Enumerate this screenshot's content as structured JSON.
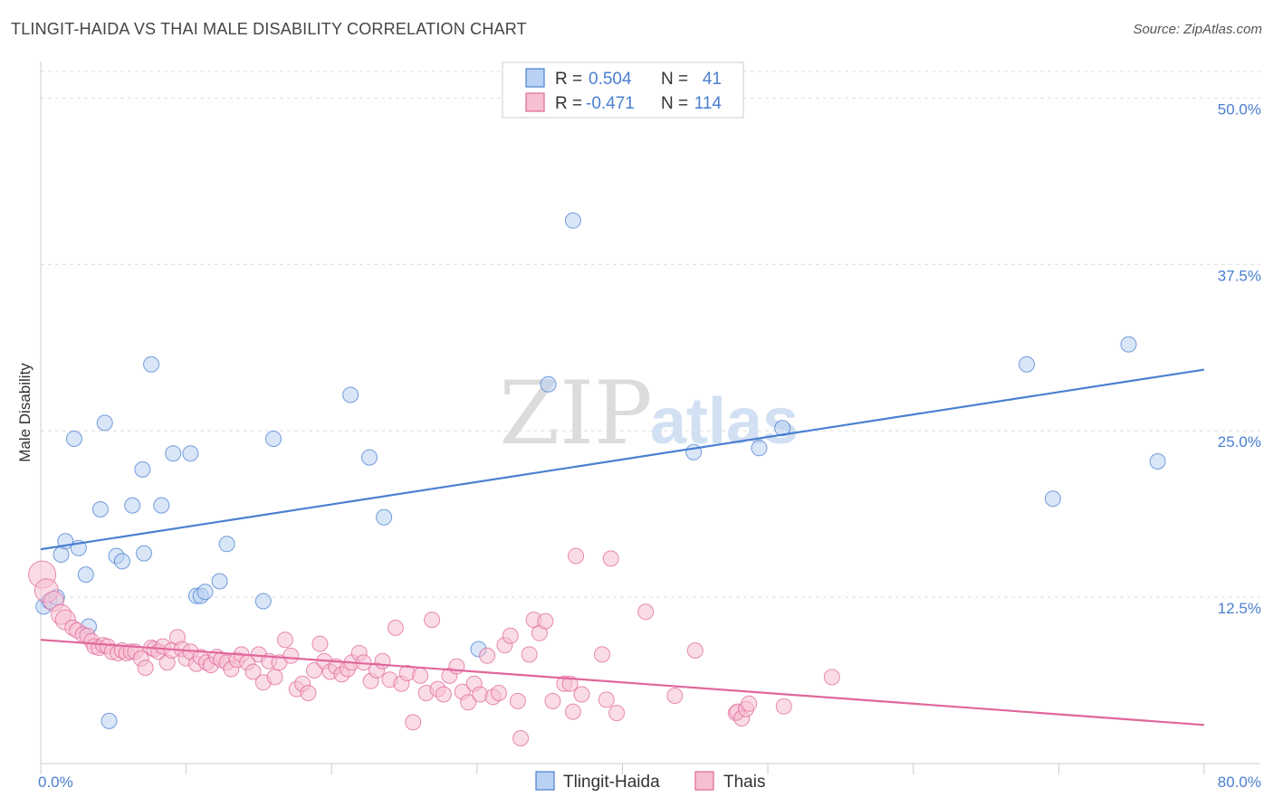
{
  "header": {
    "title": "TLINGIT-HAIDA VS THAI MALE DISABILITY CORRELATION CHART",
    "source": "Source: ZipAtlas.com"
  },
  "colors": {
    "blue": "#4a7fd0",
    "blue_fill": "#b9d1f2",
    "pink": "#e0679a",
    "pink_fill": "#f6bfd2",
    "grid": "#dddddd"
  },
  "chart_data": {
    "type": "scatter",
    "ylabel": "Male Disability",
    "xlim": [
      0,
      80
    ],
    "ylim": [
      0,
      52
    ],
    "x_ticks": [
      {
        "value": 0,
        "label": "0.0%"
      },
      {
        "value": 80,
        "label": "80.0%"
      }
    ],
    "y_ticks": [
      {
        "value": 12.5,
        "label": "12.5%"
      },
      {
        "value": 25,
        "label": "25.0%"
      },
      {
        "value": 37.5,
        "label": "37.5%"
      },
      {
        "value": 50,
        "label": "50.0%"
      }
    ],
    "grid": true,
    "legend": {
      "placement": "top-center",
      "entries": [
        {
          "r_label": "R =",
          "r": "0.504",
          "n_label": "N =",
          "n": "41"
        },
        {
          "r_label": "R =",
          "r": "-0.471",
          "n_label": "N =",
          "n": "114"
        }
      ]
    },
    "watermark": {
      "zip": "ZIP",
      "atlas": "atlas"
    },
    "series": [
      {
        "name": "Tlingit-Haida",
        "color": "blue",
        "trend": [
          [
            0,
            16.1
          ],
          [
            80,
            29.6
          ]
        ],
        "points": [
          [
            0.2,
            11.8
          ],
          [
            0.6,
            12.2
          ],
          [
            1.1,
            12.5
          ],
          [
            1.4,
            15.7
          ],
          [
            1.7,
            16.7
          ],
          [
            2.3,
            24.4
          ],
          [
            2.6,
            16.2
          ],
          [
            3.1,
            14.2
          ],
          [
            3.3,
            10.3
          ],
          [
            4.1,
            19.1
          ],
          [
            4.4,
            25.6
          ],
          [
            4.7,
            3.2
          ],
          [
            5.2,
            15.6
          ],
          [
            5.6,
            15.2
          ],
          [
            6.3,
            19.4
          ],
          [
            7.0,
            22.1
          ],
          [
            7.1,
            15.8
          ],
          [
            7.6,
            30.0
          ],
          [
            8.3,
            19.4
          ],
          [
            9.1,
            23.3
          ],
          [
            10.3,
            23.3
          ],
          [
            10.7,
            12.6
          ],
          [
            11.0,
            12.6
          ],
          [
            11.3,
            12.9
          ],
          [
            12.3,
            13.7
          ],
          [
            12.8,
            16.5
          ],
          [
            15.3,
            12.2
          ],
          [
            16.0,
            24.4
          ],
          [
            21.3,
            27.7
          ],
          [
            22.6,
            23.0
          ],
          [
            23.6,
            18.5
          ],
          [
            30.1,
            8.6
          ],
          [
            34.9,
            28.5
          ],
          [
            36.6,
            40.8
          ],
          [
            44.9,
            23.4
          ],
          [
            49.4,
            23.7
          ],
          [
            51.0,
            25.2
          ],
          [
            67.8,
            30.0
          ],
          [
            69.6,
            19.9
          ],
          [
            74.8,
            31.5
          ],
          [
            76.8,
            22.7
          ]
        ]
      },
      {
        "name": "Thais",
        "color": "pink",
        "trend": [
          [
            0,
            9.3
          ],
          [
            80,
            2.9
          ]
        ],
        "points": [
          [
            0.1,
            14.2
          ],
          [
            0.4,
            13.0
          ],
          [
            0.9,
            12.2
          ],
          [
            1.4,
            11.2
          ],
          [
            1.7,
            10.8
          ],
          [
            2.2,
            10.2
          ],
          [
            2.5,
            10.0
          ],
          [
            2.9,
            9.7
          ],
          [
            3.2,
            9.6
          ],
          [
            3.5,
            9.2
          ],
          [
            3.7,
            8.8
          ],
          [
            4.0,
            8.7
          ],
          [
            4.3,
            8.9
          ],
          [
            4.6,
            8.8
          ],
          [
            4.9,
            8.4
          ],
          [
            5.3,
            8.3
          ],
          [
            5.6,
            8.5
          ],
          [
            5.9,
            8.3
          ],
          [
            6.2,
            8.4
          ],
          [
            6.5,
            8.4
          ],
          [
            6.9,
            7.9
          ],
          [
            7.2,
            7.2
          ],
          [
            7.6,
            8.7
          ],
          [
            7.8,
            8.6
          ],
          [
            8.1,
            8.4
          ],
          [
            8.4,
            8.8
          ],
          [
            8.7,
            7.6
          ],
          [
            9.0,
            8.5
          ],
          [
            9.4,
            9.5
          ],
          [
            9.7,
            8.6
          ],
          [
            10.0,
            7.9
          ],
          [
            10.3,
            8.4
          ],
          [
            10.7,
            7.5
          ],
          [
            11.0,
            8.0
          ],
          [
            11.4,
            7.6
          ],
          [
            11.7,
            7.4
          ],
          [
            12.1,
            8.0
          ],
          [
            12.4,
            7.8
          ],
          [
            12.8,
            7.6
          ],
          [
            13.1,
            7.1
          ],
          [
            13.5,
            7.8
          ],
          [
            13.8,
            8.2
          ],
          [
            14.2,
            7.6
          ],
          [
            14.6,
            6.9
          ],
          [
            15.0,
            8.2
          ],
          [
            15.3,
            6.1
          ],
          [
            15.7,
            7.7
          ],
          [
            16.1,
            6.5
          ],
          [
            16.4,
            7.6
          ],
          [
            16.8,
            9.3
          ],
          [
            17.2,
            8.1
          ],
          [
            17.6,
            5.6
          ],
          [
            18.0,
            6.0
          ],
          [
            18.4,
            5.3
          ],
          [
            18.8,
            7.0
          ],
          [
            19.2,
            9.0
          ],
          [
            19.5,
            7.7
          ],
          [
            19.9,
            6.9
          ],
          [
            20.3,
            7.3
          ],
          [
            20.7,
            6.7
          ],
          [
            21.1,
            7.1
          ],
          [
            21.4,
            7.6
          ],
          [
            21.9,
            8.3
          ],
          [
            22.2,
            7.6
          ],
          [
            22.7,
            6.2
          ],
          [
            23.1,
            7.0
          ],
          [
            23.5,
            7.7
          ],
          [
            24.0,
            6.3
          ],
          [
            24.4,
            10.2
          ],
          [
            24.8,
            6.0
          ],
          [
            25.2,
            6.8
          ],
          [
            25.6,
            3.1
          ],
          [
            26.1,
            6.6
          ],
          [
            26.5,
            5.3
          ],
          [
            26.9,
            10.8
          ],
          [
            27.3,
            5.6
          ],
          [
            27.7,
            5.2
          ],
          [
            28.1,
            6.6
          ],
          [
            28.6,
            7.3
          ],
          [
            29.0,
            5.4
          ],
          [
            29.4,
            4.6
          ],
          [
            29.8,
            6.0
          ],
          [
            30.2,
            5.2
          ],
          [
            30.7,
            8.1
          ],
          [
            31.1,
            5.0
          ],
          [
            31.5,
            5.3
          ],
          [
            31.9,
            8.9
          ],
          [
            32.3,
            9.6
          ],
          [
            32.8,
            4.7
          ],
          [
            33.0,
            1.9
          ],
          [
            33.6,
            8.2
          ],
          [
            33.9,
            10.8
          ],
          [
            34.3,
            9.8
          ],
          [
            34.7,
            10.7
          ],
          [
            35.2,
            4.7
          ],
          [
            36.0,
            6.0
          ],
          [
            36.4,
            6.0
          ],
          [
            36.6,
            3.9
          ],
          [
            36.8,
            15.6
          ],
          [
            37.2,
            5.2
          ],
          [
            38.6,
            8.2
          ],
          [
            38.9,
            4.8
          ],
          [
            39.2,
            15.4
          ],
          [
            39.6,
            3.8
          ],
          [
            41.6,
            11.4
          ],
          [
            43.6,
            5.1
          ],
          [
            45.0,
            8.5
          ],
          [
            47.8,
            3.8
          ],
          [
            47.9,
            3.9
          ],
          [
            48.2,
            3.4
          ],
          [
            48.5,
            4.1
          ],
          [
            48.7,
            4.5
          ],
          [
            51.1,
            4.3
          ],
          [
            54.4,
            6.5
          ]
        ]
      }
    ]
  }
}
